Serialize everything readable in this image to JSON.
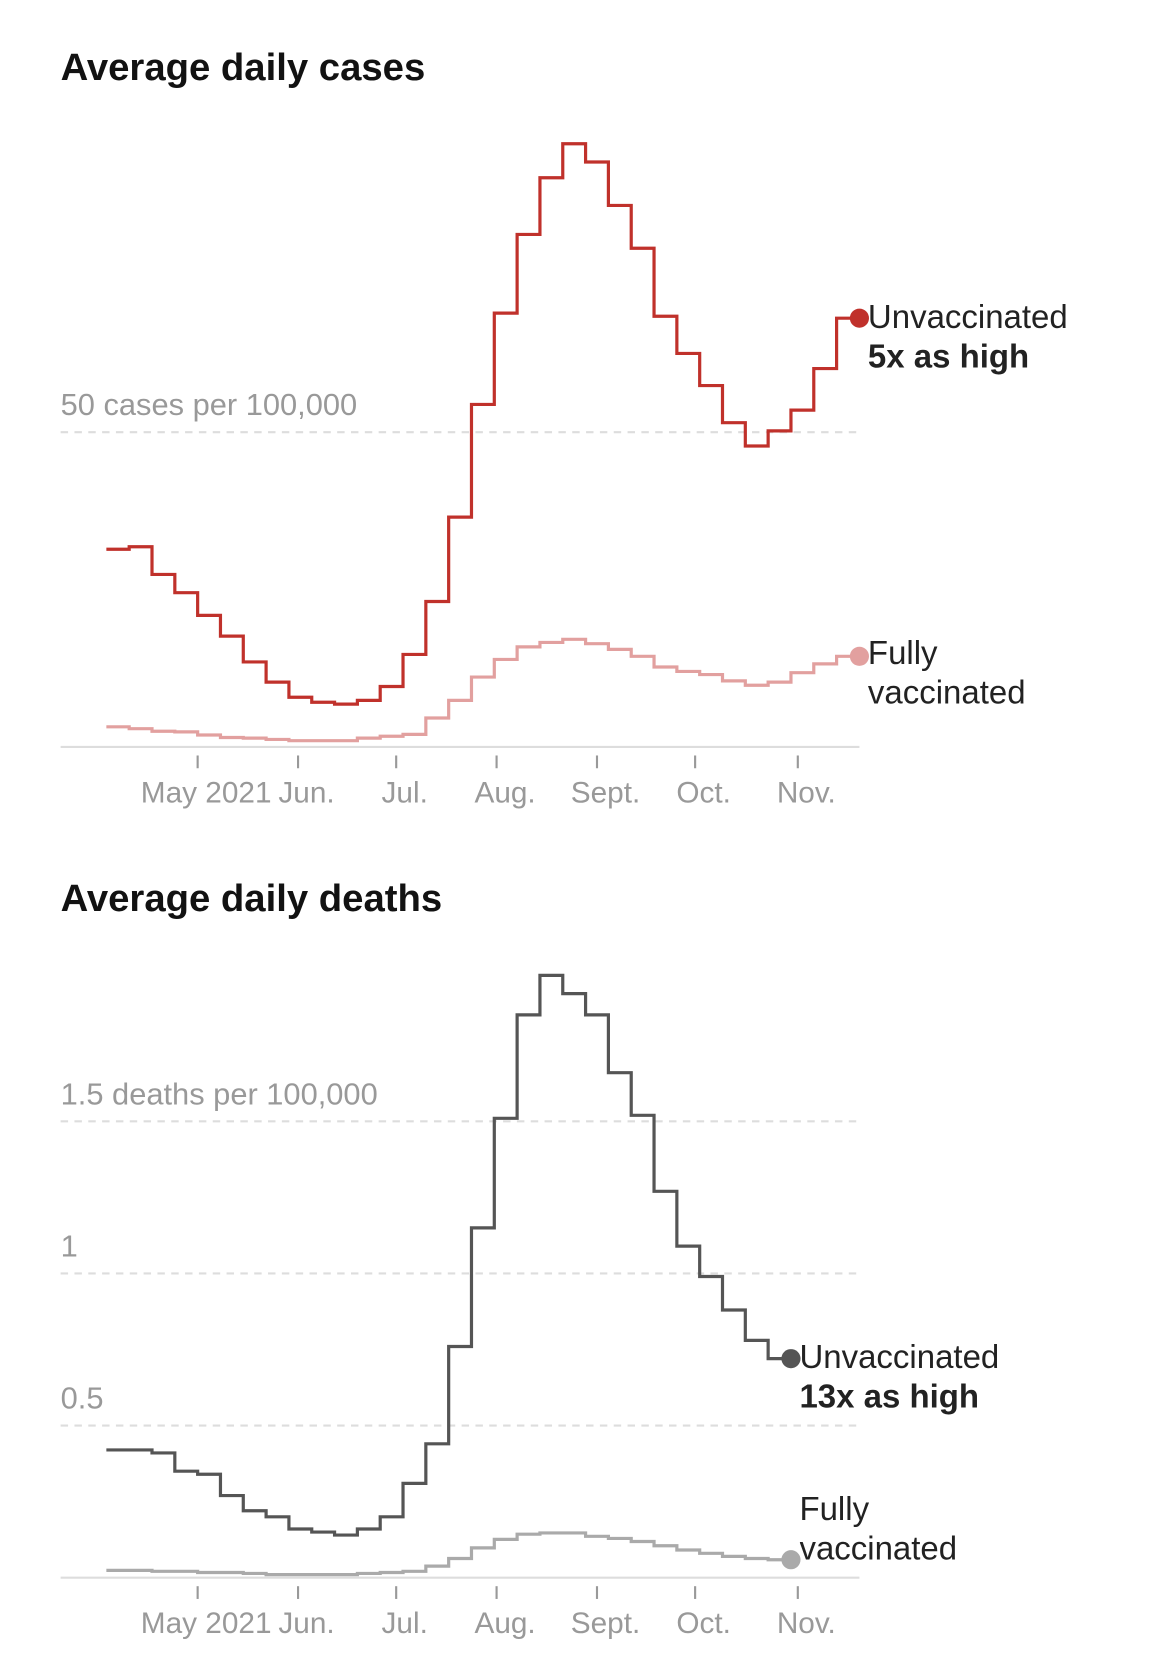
{
  "chart_data": [
    {
      "type": "line",
      "step": true,
      "title": "Average daily cases",
      "xlim": [
        0,
        33
      ],
      "ylim": [
        0,
        100
      ],
      "yticks": [
        {
          "value": 50,
          "label": "50 cases per 100,000"
        }
      ],
      "xticks": [
        {
          "value": 4.0,
          "label": "May 2021"
        },
        {
          "value": 8.4,
          "label": "Jun."
        },
        {
          "value": 12.7,
          "label": "Jul."
        },
        {
          "value": 17.1,
          "label": "Aug."
        },
        {
          "value": 21.5,
          "label": "Sept."
        },
        {
          "value": 25.8,
          "label": "Oct."
        },
        {
          "value": 30.3,
          "label": "Nov."
        }
      ],
      "grid": true,
      "series": [
        {
          "name": "Unvaccinated",
          "note": "5x as high",
          "color": "#c0312b",
          "values": [
            31.4,
            31.8,
            27.4,
            24.5,
            20.9,
            17.6,
            13.5,
            10.3,
            7.9,
            7.1,
            6.8,
            7.4,
            9.6,
            14.7,
            23.1,
            36.5,
            54.4,
            68.9,
            81.4,
            90.4,
            95.8,
            92.9,
            86.0,
            79.2,
            68.4,
            62.5,
            57.4,
            51.5,
            47.8,
            50.2,
            53.5,
            60.1,
            68.1
          ]
        },
        {
          "name": "Fully vaccinated",
          "color": "#e2a09f",
          "values": [
            3.2,
            2.9,
            2.5,
            2.4,
            1.9,
            1.5,
            1.4,
            1.2,
            1.0,
            1.0,
            1.0,
            1.4,
            1.7,
            2.0,
            4.6,
            7.4,
            11.1,
            13.9,
            15.9,
            16.6,
            17.1,
            16.4,
            15.5,
            14.4,
            12.7,
            12.0,
            11.5,
            10.5,
            9.8,
            10.3,
            11.8,
            13.2,
            14.4
          ]
        }
      ]
    },
    {
      "type": "line",
      "step": true,
      "title": "Average daily deaths",
      "xlim": [
        0,
        33
      ],
      "ylim": [
        0,
        2
      ],
      "yticks": [
        {
          "value": 1.5,
          "label": "1.5 deaths per 100,000"
        },
        1,
        0.5
      ],
      "xticks": [
        {
          "value": 4.0,
          "label": "May 2021"
        },
        {
          "value": 8.4,
          "label": "Jun."
        },
        {
          "value": 12.7,
          "label": "Jul."
        },
        {
          "value": 17.1,
          "label": "Aug."
        },
        {
          "value": 21.5,
          "label": "Sept."
        },
        {
          "value": 25.8,
          "label": "Oct."
        },
        {
          "value": 30.3,
          "label": "Nov."
        }
      ],
      "grid": true,
      "series": [
        {
          "name": "Unvaccinated",
          "note": "13x as high",
          "color": "#555555",
          "values": [
            0.42,
            0.42,
            0.41,
            0.35,
            0.34,
            0.27,
            0.22,
            0.2,
            0.16,
            0.15,
            0.14,
            0.16,
            0.2,
            0.31,
            0.44,
            0.76,
            1.15,
            1.51,
            1.85,
            1.98,
            1.92,
            1.85,
            1.66,
            1.52,
            1.27,
            1.09,
            0.99,
            0.88,
            0.78,
            0.72
          ]
        },
        {
          "name": "Fully vaccinated",
          "color": "#aaaaaa",
          "values": [
            0.024,
            0.024,
            0.021,
            0.021,
            0.017,
            0.017,
            0.014,
            0.01,
            0.01,
            0.01,
            0.01,
            0.014,
            0.017,
            0.021,
            0.038,
            0.063,
            0.098,
            0.126,
            0.143,
            0.147,
            0.147,
            0.136,
            0.129,
            0.119,
            0.105,
            0.091,
            0.08,
            0.07,
            0.063,
            0.059
          ]
        }
      ]
    }
  ]
}
